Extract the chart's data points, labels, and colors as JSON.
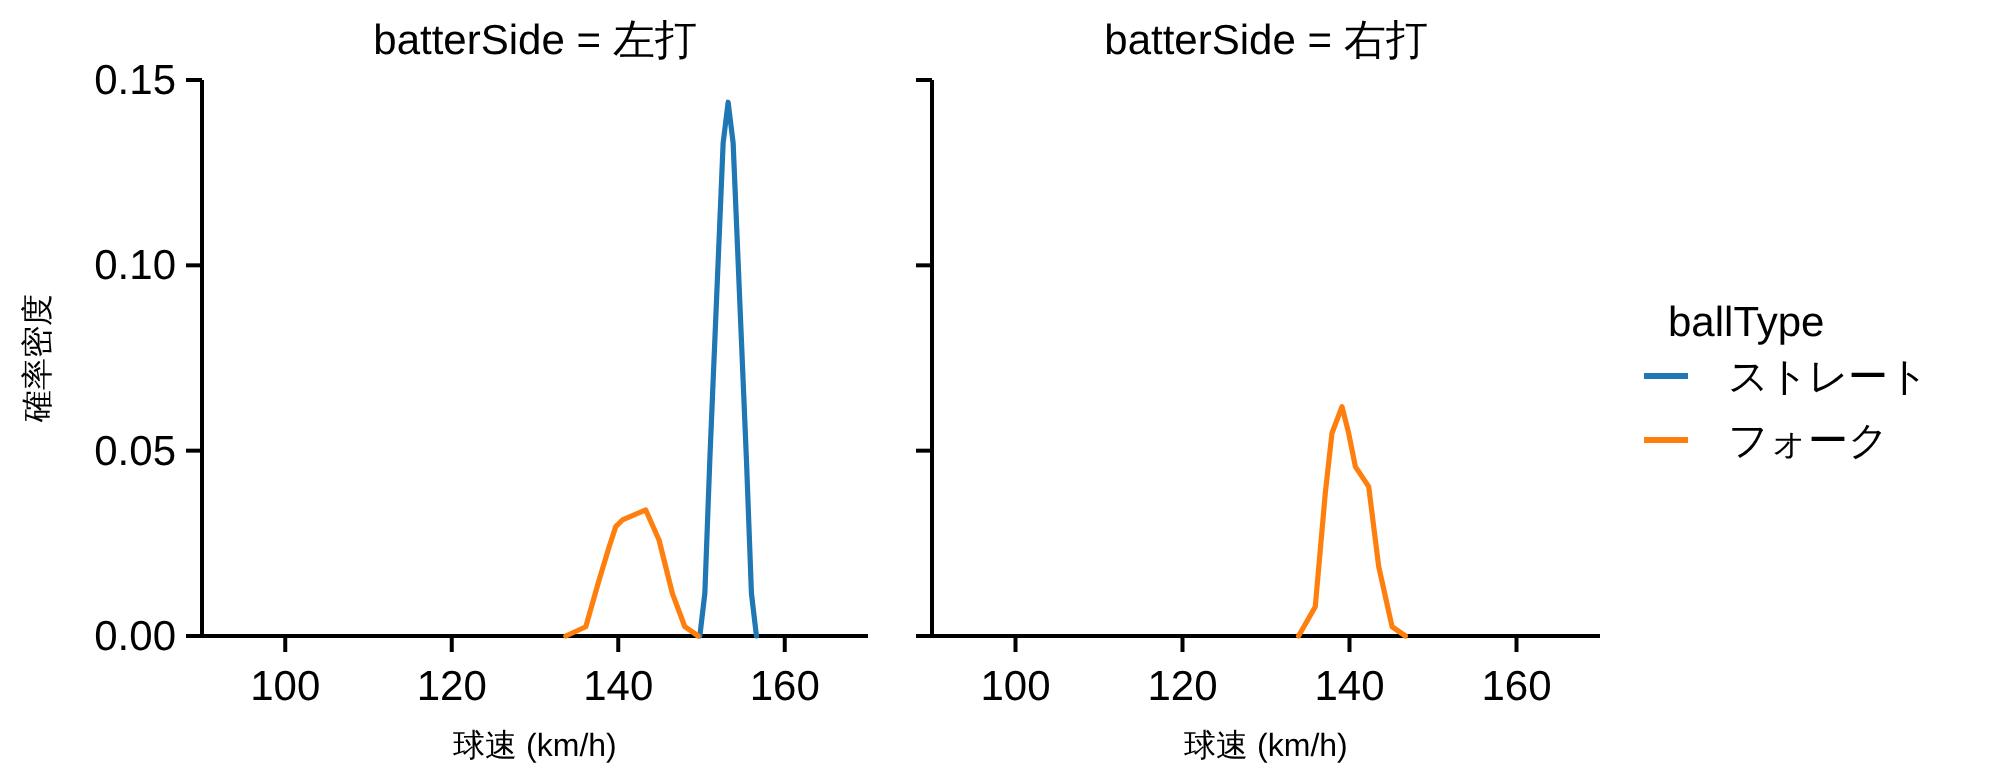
{
  "chart_data": [
    {
      "type": "line",
      "title": "batterSide = 左打",
      "xlabel": "球速 (km/h)",
      "ylabel": "確率密度",
      "xlim": [
        90,
        170
      ],
      "ylim": [
        0,
        0.15
      ],
      "xticks": [
        100,
        120,
        140,
        160
      ],
      "yticks": [
        {
          "value": 0,
          "label": "0.00"
        },
        {
          "value": 0.05,
          "label": "0.05"
        },
        {
          "value": 0.1,
          "label": "0.10"
        },
        {
          "value": 0.15,
          "label": "0.15"
        }
      ],
      "legend": "right",
      "legend_title": "ballType",
      "series": [
        {
          "name": "ストレート",
          "color": "#1f77b4",
          "x": [
            149.8,
            150.4,
            151.0,
            152.0,
            152.6,
            153.2,
            153.8,
            154.4,
            155.4,
            156.0,
            156.6
          ],
          "values": [
            0,
            0.0115,
            0.0475,
            0.101,
            0.133,
            0.144,
            0.133,
            0.101,
            0.0475,
            0.0115,
            0
          ]
        },
        {
          "name": "フォーク",
          "color": "#ff7f0e",
          "x": [
            133.7,
            136.1,
            137.7,
            138.9,
            139.7,
            140.5,
            143.3,
            144.9,
            146.5,
            148.0,
            149.6
          ],
          "values": [
            0,
            0.0025,
            0.0151,
            0.024,
            0.0295,
            0.0313,
            0.034,
            0.0259,
            0.0115,
            0.0025,
            0
          ]
        }
      ]
    },
    {
      "type": "line",
      "title": "batterSide = 右打",
      "xlabel": "球速 (km/h)",
      "xlim": [
        90,
        170
      ],
      "ylim": [
        0,
        0.15
      ],
      "xticks": [
        100,
        120,
        140,
        160
      ],
      "yticks": [
        {
          "value": 0,
          "label": null
        },
        {
          "value": 0.05,
          "label": null
        },
        {
          "value": 0.1,
          "label": null
        },
        {
          "value": 0.15,
          "label": null
        }
      ],
      "tick_labels": "x",
      "series": [
        {
          "color": "#ff7f0e",
          "x": [
            133.9,
            135.9,
            137.1,
            137.9,
            139.1,
            139.9,
            140.7,
            142.3,
            143.5,
            145.1,
            146.7
          ],
          "values": [
            0,
            0.0079,
            0.0385,
            0.0547,
            0.0619,
            0.0547,
            0.0457,
            0.0403,
            0.0187,
            0.0025,
            0
          ]
        }
      ]
    }
  ]
}
